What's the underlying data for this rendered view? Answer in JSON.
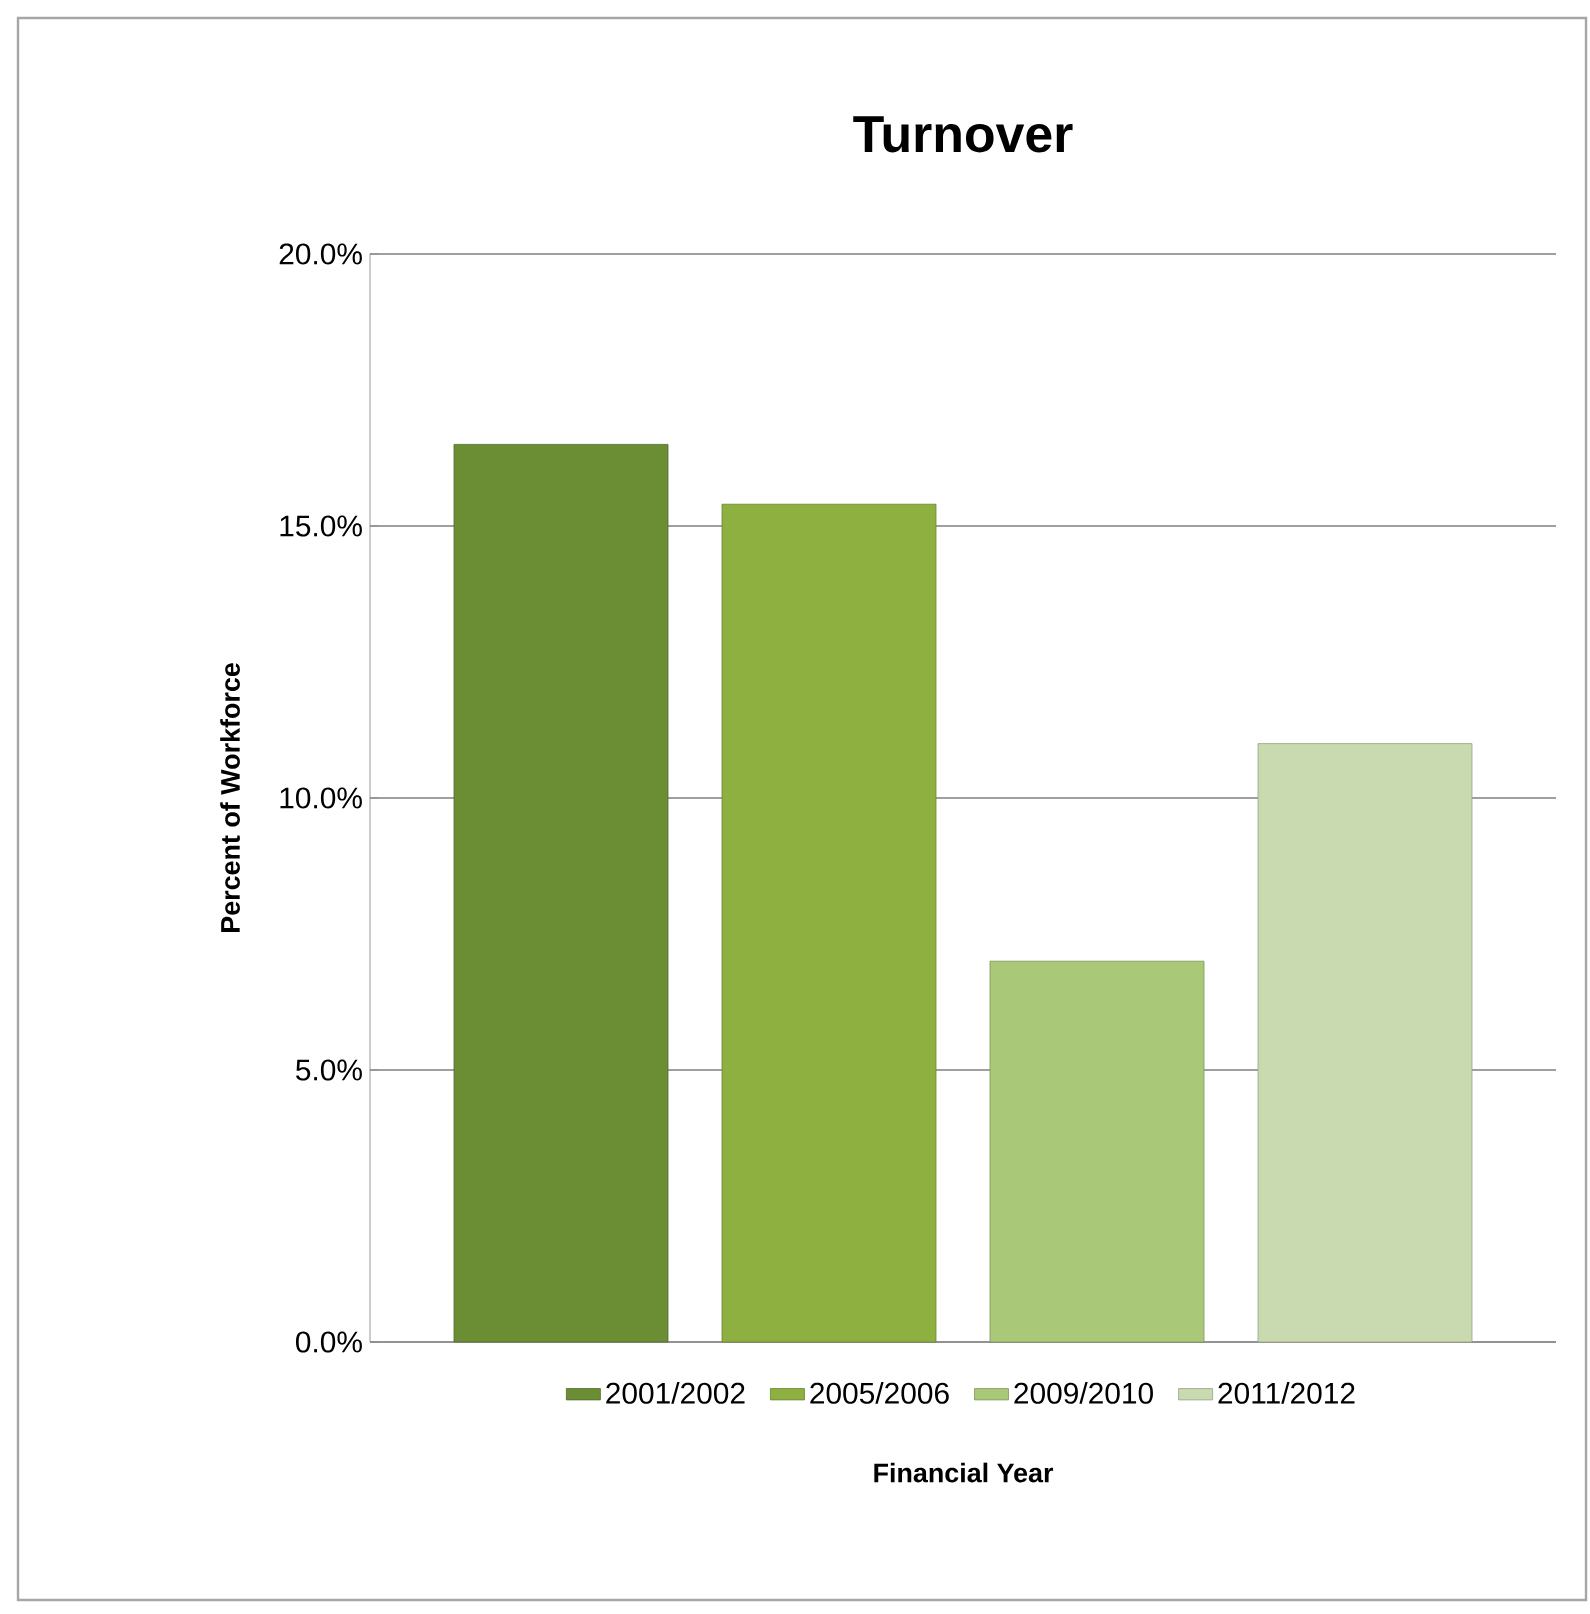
{
  "chart_data": {
    "type": "bar",
    "title": "Turnover",
    "xlabel": "Financial Year",
    "ylabel": "Percent of Workforce",
    "categories": [
      null
    ],
    "series": [
      {
        "name": "2001/2002",
        "color": "#6b8e35",
        "values": [
          16.5
        ]
      },
      {
        "name": "2005/2006",
        "color": "#8db040",
        "values": [
          15.4
        ]
      },
      {
        "name": "2009/2010",
        "color": "#a9c978",
        "values": [
          7.0
        ]
      },
      {
        "name": "2011/2012",
        "color": "#c9d9b0",
        "values": [
          11.0
        ]
      }
    ],
    "ylim": [
      0,
      20
    ],
    "yticks": [
      {
        "value": 0,
        "label": "0.0%"
      },
      {
        "value": 5,
        "label": "5.0%"
      },
      {
        "value": 10,
        "label": "10.0%"
      },
      {
        "value": 15,
        "label": "15.0%"
      },
      {
        "value": 20,
        "label": "20.0%"
      }
    ],
    "grid": "y",
    "legend": "bottom"
  }
}
